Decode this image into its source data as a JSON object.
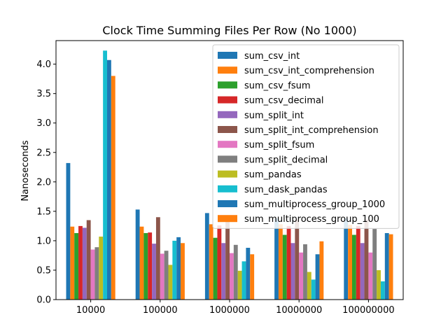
{
  "chart_data": {
    "type": "bar",
    "title": "Clock Time Summing Files Per Row (No 1000)",
    "xlabel": "",
    "ylabel": "Nanoseconds",
    "ylim": [
      0,
      4.4
    ],
    "yticks": [
      "0.0",
      "0.5",
      "1.0",
      "1.5",
      "2.0",
      "2.5",
      "3.0",
      "3.5",
      "4.0"
    ],
    "categories": [
      "10000",
      "100000",
      "1000000",
      "10000000",
      "100000000"
    ],
    "grid": false,
    "legend_position": "upper-right",
    "series": [
      {
        "name": "sum_csv_int",
        "color": "#1f77b4",
        "values": [
          2.32,
          1.53,
          1.47,
          1.38,
          1.38
        ]
      },
      {
        "name": "sum_csv_int_comprehension",
        "color": "#ff7f0e",
        "values": [
          1.24,
          1.24,
          1.28,
          1.28,
          1.27
        ]
      },
      {
        "name": "sum_csv_fsum",
        "color": "#2ca02c",
        "values": [
          1.13,
          1.13,
          1.05,
          1.1,
          1.1
        ]
      },
      {
        "name": "sum_csv_decimal",
        "color": "#d62728",
        "values": [
          1.25,
          1.14,
          1.26,
          1.25,
          1.25
        ]
      },
      {
        "name": "sum_split_int",
        "color": "#9467bd",
        "values": [
          1.22,
          0.95,
          0.96,
          0.96,
          0.96
        ]
      },
      {
        "name": "sum_split_int_comprehension",
        "color": "#8c564b",
        "values": [
          1.35,
          1.4,
          1.36,
          1.36,
          1.36
        ]
      },
      {
        "name": "sum_split_fsum",
        "color": "#e377c2",
        "values": [
          0.85,
          0.78,
          0.79,
          0.8,
          0.8
        ]
      },
      {
        "name": "sum_split_decimal",
        "color": "#7f7f7f",
        "values": [
          0.89,
          0.83,
          0.93,
          0.94,
          1.2
        ]
      },
      {
        "name": "sum_pandas",
        "color": "#bcbd22",
        "values": [
          1.07,
          0.59,
          0.49,
          0.47,
          0.5
        ]
      },
      {
        "name": "sum_dask_pandas",
        "color": "#17becf",
        "values": [
          4.23,
          1.0,
          0.65,
          0.34,
          0.31
        ]
      },
      {
        "name": "sum_multiprocess_group_1000",
        "color": "#1f77b4",
        "values": [
          4.07,
          1.06,
          0.88,
          0.77,
          1.13
        ]
      },
      {
        "name": "sum_multiprocess_group_100",
        "color": "#ff7f0e",
        "values": [
          3.8,
          0.96,
          0.77,
          0.99,
          1.11
        ]
      }
    ]
  }
}
